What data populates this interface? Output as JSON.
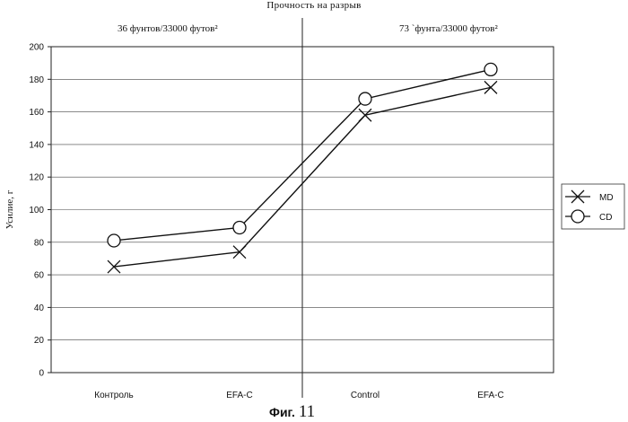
{
  "figure": {
    "caption_word": "Фиг.",
    "caption_number": "11"
  },
  "chart_data": {
    "type": "line",
    "title": "Прочность на разрыв",
    "ylabel": "Усилие, г",
    "xlabel": "",
    "ylim": [
      0,
      200
    ],
    "yticks": [
      0,
      20,
      40,
      60,
      80,
      100,
      120,
      140,
      160,
      180,
      200
    ],
    "categories": [
      "Контроль",
      "EFA-C",
      "Control",
      "EFA-C"
    ],
    "groups": [
      {
        "label": "36 фунтов/33000 футов²",
        "categories": [
          0,
          1
        ]
      },
      {
        "label": "73 `фунта/33000 футов²",
        "categories": [
          2,
          3
        ]
      }
    ],
    "series": [
      {
        "name": "MD",
        "marker": "x",
        "values": [
          65,
          74,
          158,
          175
        ]
      },
      {
        "name": "CD",
        "marker": "o",
        "values": [
          81,
          89,
          168,
          186
        ]
      }
    ],
    "grid": true,
    "legend": "right"
  }
}
